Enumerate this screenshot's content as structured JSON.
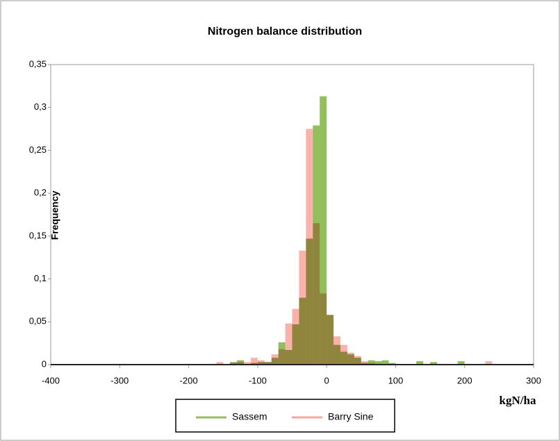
{
  "chart_data": {
    "type": "histogram",
    "title": "Nitrogen balance distribution",
    "xlabel": "kgN/ha",
    "ylabel": "Frequency",
    "bins": [
      -160,
      -150,
      -140,
      -130,
      -120,
      -110,
      -100,
      -90,
      -80,
      -70,
      -60,
      -50,
      -40,
      -30,
      -20,
      -10,
      0,
      10,
      20,
      30,
      40,
      50,
      60,
      70,
      80,
      90,
      100,
      110,
      120,
      130,
      140,
      150,
      160,
      170,
      180,
      190,
      200,
      210,
      220,
      230,
      240
    ],
    "series": [
      {
        "name": "Sassem",
        "color": "#93bf5b",
        "values": [
          0,
          0,
          0.003,
          0.005,
          0,
          0.002,
          0.003,
          0.003,
          0.008,
          0.026,
          0.017,
          0.047,
          0.078,
          0.147,
          0.279,
          0.313,
          0.058,
          0.023,
          0.015,
          0.012,
          0.008,
          0.002,
          0.005,
          0.004,
          0.005,
          0.002,
          0,
          0,
          0,
          0.004,
          0,
          0.003,
          0,
          0,
          0,
          0.004,
          0,
          0,
          0,
          0
        ]
      },
      {
        "name": "Barry Sine",
        "color": "#f9a49c",
        "values": [
          0.003,
          0,
          0.002,
          0.003,
          0.003,
          0.008,
          0.005,
          0.003,
          0.012,
          0.018,
          0.048,
          0.065,
          0.133,
          0.275,
          0.165,
          0.083,
          0.058,
          0.033,
          0.023,
          0.014,
          0.01,
          0.004,
          0.002,
          0.001,
          0,
          0,
          0,
          0,
          0,
          0,
          0,
          0,
          0,
          0,
          0,
          0,
          0,
          0,
          0,
          0.004
        ]
      }
    ],
    "xlim": [
      -400,
      300
    ],
    "xticks": [
      -400,
      -300,
      -200,
      -100,
      0,
      100,
      200,
      300
    ],
    "ylim": [
      0,
      0.35
    ],
    "yticks": [
      0,
      {
        "value": 0.05,
        "label": "0,05"
      },
      {
        "value": 0.1,
        "label": "0,1"
      },
      {
        "value": 0.15,
        "label": "0,15"
      },
      {
        "value": 0.2,
        "label": "0,2"
      },
      {
        "value": 0.25,
        "label": "0,25"
      },
      {
        "value": 0.3,
        "label": "0,3"
      },
      {
        "value": 0.35,
        "label": "0,35"
      }
    ],
    "grid": false,
    "legend": "bottom"
  }
}
